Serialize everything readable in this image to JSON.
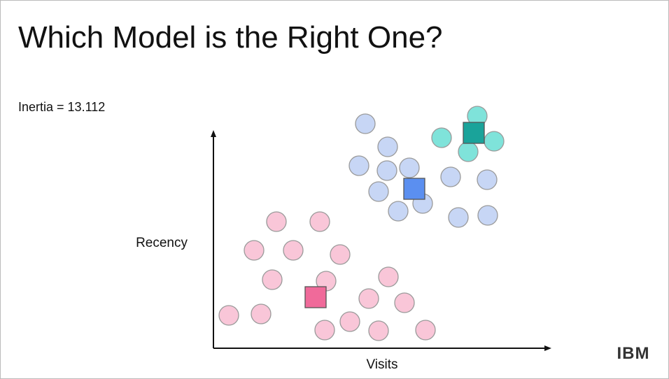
{
  "title": "Which Model is the Right One?",
  "inertia": "Inertia = 13.112",
  "y_axis_label": "Recency",
  "x_axis_label": "Visits",
  "logo": "IBM"
}
